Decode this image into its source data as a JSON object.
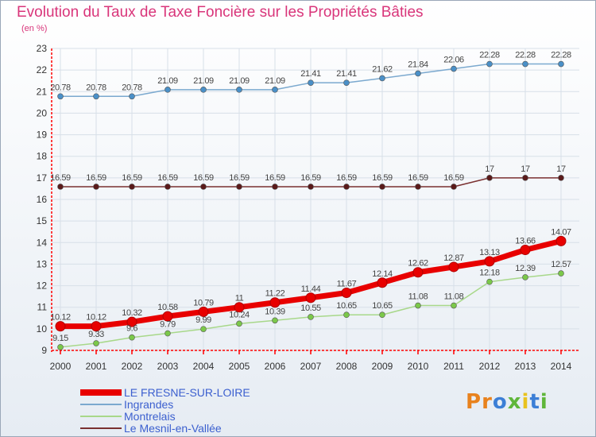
{
  "header": {
    "title": "Evolution du Taux de Taxe Foncière sur les Propriétés Bâties",
    "subtitle": "(en %)"
  },
  "logo": {
    "letters": [
      "P",
      "r",
      "o",
      "x",
      "i",
      "t",
      "i"
    ]
  },
  "colors": {
    "title": "#d9357a",
    "legend_text": "#3b5fcf",
    "axis": "#ff0000",
    "grid": "#d7dfe8",
    "logo": [
      "#e8821e",
      "#e8821e",
      "#3c7fd6",
      "#5fb63a",
      "#e8c21e",
      "#3c7fd6",
      "#5fb63a"
    ]
  },
  "chart_data": {
    "type": "line",
    "title": "Evolution du Taux de Taxe Foncière sur les Propriétés Bâties",
    "ylabel": "(en %)",
    "xlabel": "",
    "ylim": [
      9,
      23
    ],
    "yticks": [
      "9",
      "10",
      "11",
      "12",
      "13",
      "14",
      "15",
      "16",
      "17",
      "18",
      "19",
      "20",
      "21",
      "22",
      "23"
    ],
    "categories": [
      "2000",
      "2001",
      "2002",
      "2003",
      "2004",
      "2005",
      "2006",
      "2007",
      "2008",
      "2009",
      "2010",
      "2011",
      "2012",
      "2013",
      "2014"
    ],
    "grid": true,
    "legend_position": "bottom-left",
    "series": [
      {
        "key": "lefresne",
        "name": "LE FRESNE-SUR-LOIRE",
        "color": "#e80000",
        "point_color": "#e80000",
        "values": [
          10.12,
          10.12,
          10.32,
          10.58,
          10.79,
          11,
          11.22,
          11.44,
          11.67,
          12.14,
          12.62,
          12.87,
          13.13,
          13.66,
          14.07
        ],
        "labels": [
          "10.12",
          "10.12",
          "10.32",
          "10.58",
          "10.79",
          "11",
          "11.22",
          "11.44",
          "11.67",
          "12.14",
          "12.62",
          "12.87",
          "13.13",
          "13.66",
          "14.07"
        ]
      },
      {
        "key": "ingrandes",
        "name": "Ingrandes",
        "color": "#7ba9cf",
        "point_color": "#4a90c8",
        "values": [
          20.78,
          20.78,
          20.78,
          21.09,
          21.09,
          21.09,
          21.09,
          21.41,
          21.41,
          21.62,
          21.84,
          22.06,
          22.28,
          22.28,
          22.28
        ],
        "labels": [
          "20.78",
          "20.78",
          "20.78",
          "21.09",
          "21.09",
          "21.09",
          "21.09",
          "21.41",
          "21.41",
          "21.62",
          "21.84",
          "22.06",
          "22.28",
          "22.28",
          "22.28"
        ]
      },
      {
        "key": "montrelais",
        "name": "Montrelais",
        "color": "#a8d88a",
        "point_color": "#7bc84a",
        "values": [
          9.15,
          9.33,
          9.6,
          9.79,
          9.99,
          10.24,
          10.39,
          10.55,
          10.65,
          10.65,
          11.08,
          11.08,
          12.18,
          12.39,
          12.57
        ],
        "labels": [
          "9.15",
          "9.33",
          "9.6",
          "9.79",
          "9.99",
          "10.24",
          "10.39",
          "10.55",
          "10.65",
          "10.65",
          "11.08",
          "11.08",
          "12.18",
          "12.39",
          "12.57"
        ]
      },
      {
        "key": "mesnil",
        "name": "Le Mesnil-en-Vallée",
        "color": "#7a3030",
        "point_color": "#5a1a1a",
        "values": [
          16.59,
          16.59,
          16.59,
          16.59,
          16.59,
          16.59,
          16.59,
          16.59,
          16.59,
          16.59,
          16.59,
          16.59,
          17,
          17,
          17
        ],
        "labels": [
          "16.59",
          "16.59",
          "16.59",
          "16.59",
          "16.59",
          "16.59",
          "16.59",
          "16.59",
          "16.59",
          "16.59",
          "16.59",
          "16.59",
          "17",
          "17",
          "17"
        ]
      }
    ]
  }
}
